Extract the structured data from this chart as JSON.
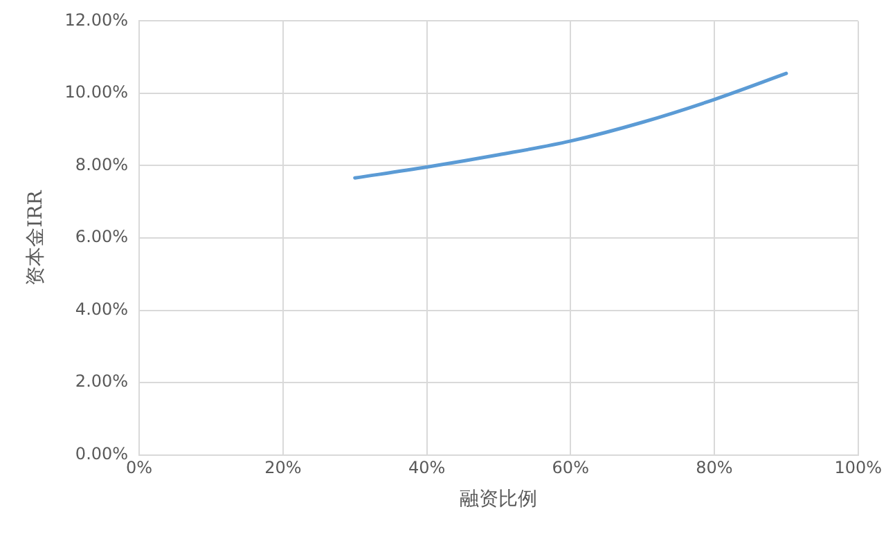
{
  "chart_data": {
    "type": "line",
    "xlabel": "融资比例",
    "ylabel": "资本金IRR",
    "x": [
      30,
      40,
      50,
      60,
      70,
      80,
      90
    ],
    "series": [
      {
        "color": "#5b9bd5",
        "values": [
          7.66,
          7.96,
          8.3,
          8.68,
          9.2,
          9.83,
          10.55
        ]
      }
    ],
    "xlim": [
      0,
      100
    ],
    "xticks": [
      {
        "value": 0,
        "label": "0%"
      },
      {
        "value": 20,
        "label": "20%"
      },
      {
        "value": 40,
        "label": "40%"
      },
      {
        "value": 60,
        "label": "60%"
      },
      {
        "value": 80,
        "label": "80%"
      },
      {
        "value": 100,
        "label": "100%"
      }
    ],
    "ylim": [
      0,
      12
    ],
    "yticks": [
      {
        "value": 0,
        "label": "0.00%"
      },
      {
        "value": 2,
        "label": "2.00%"
      },
      {
        "value": 4,
        "label": "4.00%"
      },
      {
        "value": 6,
        "label": "6.00%"
      },
      {
        "value": 8,
        "label": "8.00%"
      },
      {
        "value": 10,
        "label": "10.00%"
      },
      {
        "value": 12,
        "label": "12.00%"
      }
    ],
    "grid": true,
    "legend": false,
    "marker": "none",
    "line_style": "solid"
  }
}
